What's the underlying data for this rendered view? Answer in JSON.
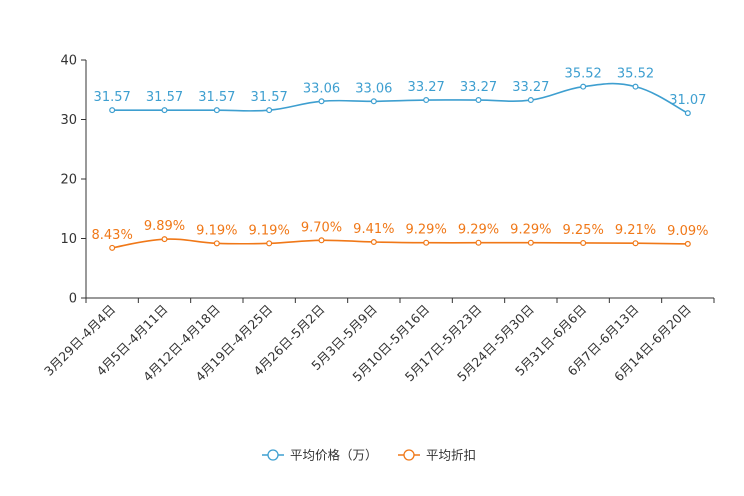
{
  "chart_data": {
    "type": "line",
    "title": "",
    "xlabel": "",
    "ylabel": "",
    "ylim": [
      0,
      40
    ],
    "yticks": [
      "0",
      "10",
      "20",
      "30",
      "40"
    ],
    "categories": [
      "3月29日-4月4日",
      "4月5日-4月11日",
      "4月12日-4月18日",
      "4月19日-4月25日",
      "4月26日-5月2日",
      "5月3日-5月9日",
      "5月10日-5月16日",
      "5月17日-5月23日",
      "5月24日-5月30日",
      "5月31日-6月6日",
      "6月7日-6月13日",
      "6月14日-6月20日"
    ],
    "series": [
      {
        "name": "平均价格（万）",
        "color": "#3e9fd0",
        "values": [
          31.57,
          31.57,
          31.57,
          31.57,
          33.06,
          33.06,
          33.27,
          33.27,
          33.27,
          35.52,
          35.52,
          31.07
        ],
        "labels": [
          "31.57",
          "31.57",
          "31.57",
          "31.57",
          "33.06",
          "33.06",
          "33.27",
          "33.27",
          "33.27",
          "35.52",
          "35.52",
          "31.07"
        ]
      },
      {
        "name": "平均折扣",
        "color": "#f07818",
        "values": [
          8.43,
          9.89,
          9.19,
          9.19,
          9.7,
          9.41,
          9.29,
          9.29,
          9.29,
          9.25,
          9.21,
          9.09
        ],
        "labels": [
          "8.43%",
          "9.89%",
          "9.19%",
          "9.19%",
          "9.70%",
          "9.41%",
          "9.29%",
          "9.29%",
          "9.29%",
          "9.25%",
          "9.21%",
          "9.09%"
        ]
      }
    ],
    "legend_position": "bottom-center",
    "grid": false
  }
}
